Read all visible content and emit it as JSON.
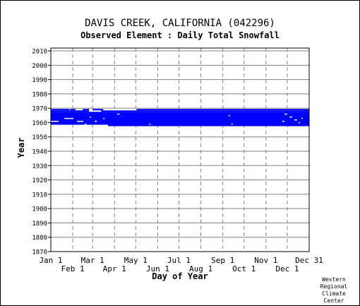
{
  "title": "DAVIS CREEK, CALIFORNIA   (042296)",
  "subtitle": "Observed Element : Daily Total Snowfall",
  "credit": [
    "Western",
    "Regional",
    "Climate",
    "Center"
  ],
  "colors": {
    "data": "#0000ff",
    "grid": "#808080",
    "axis": "#000000",
    "background": "#ffffff"
  },
  "chart_data": {
    "type": "heatmap",
    "xlabel": "Day of Year",
    "ylabel": "Year",
    "xlim": [
      1,
      366
    ],
    "ylim": [
      1870,
      2012
    ],
    "x_ticks_top_row": [
      {
        "label": "Jan 1",
        "day": 1
      },
      {
        "label": "Mar 1",
        "day": 60
      },
      {
        "label": "May 1",
        "day": 121
      },
      {
        "label": "Jul 1",
        "day": 182
      },
      {
        "label": "Sep 1",
        "day": 244
      },
      {
        "label": "Nov 1",
        "day": 305
      },
      {
        "label": "Dec 31",
        "day": 366
      }
    ],
    "x_ticks_bottom_row": [
      {
        "label": "Feb 1",
        "day": 32
      },
      {
        "label": "Apr 1",
        "day": 91
      },
      {
        "label": "Jun 1",
        "day": 152
      },
      {
        "label": "Aug 1",
        "day": 213
      },
      {
        "label": "Oct 1",
        "day": 274
      },
      {
        "label": "Dec 1",
        "day": 335
      }
    ],
    "y_ticks": [
      1870,
      1880,
      1890,
      1900,
      1910,
      1920,
      1930,
      1940,
      1950,
      1960,
      1970,
      1980,
      1990,
      2000,
      2010
    ],
    "grid": true,
    "observed_period": {
      "start_year": 1958,
      "end_year": 1969
    },
    "observed_blocks": [
      {
        "start_day": 1,
        "end_day": 366,
        "start_year": 1958.5,
        "end_year": 1967.5
      },
      {
        "start_day": 82,
        "end_day": 366,
        "start_year": 1957.5,
        "end_year": 1958.5
      },
      {
        "start_day": 1,
        "end_day": 55,
        "start_year": 1967.5,
        "end_year": 1968.5
      },
      {
        "start_day": 72,
        "end_day": 366,
        "start_year": 1967.5,
        "end_year": 1968.5
      },
      {
        "start_day": 1,
        "end_day": 27,
        "start_year": 1968.5,
        "end_year": 1969.5
      },
      {
        "start_day": 28,
        "end_day": 36,
        "start_year": 1968.5,
        "end_year": 1969.5
      },
      {
        "start_day": 46,
        "end_day": 55,
        "start_year": 1968.5,
        "end_year": 1969.5
      },
      {
        "start_day": 60,
        "end_day": 75,
        "start_year": 1968.5,
        "end_year": 1969.5
      },
      {
        "start_day": 122,
        "end_day": 366,
        "start_year": 1968.5,
        "end_year": 1969.5
      }
    ],
    "missing_gaps": [
      {
        "start_day": 1,
        "end_day": 12,
        "year": 1961
      },
      {
        "start_day": 20,
        "end_day": 33,
        "year": 1963
      },
      {
        "start_day": 38,
        "end_day": 47,
        "year": 1961
      },
      {
        "start_day": 49,
        "end_day": 51,
        "year": 1959
      },
      {
        "start_day": 56,
        "end_day": 58,
        "year": 1964
      },
      {
        "start_day": 63,
        "end_day": 66,
        "year": 1961
      },
      {
        "start_day": 75,
        "end_day": 77,
        "year": 1963
      },
      {
        "start_day": 95,
        "end_day": 98,
        "year": 1966
      },
      {
        "start_day": 140,
        "end_day": 142,
        "year": 1959
      },
      {
        "start_day": 252,
        "end_day": 254,
        "year": 1965
      },
      {
        "start_day": 256,
        "end_day": 258,
        "year": 1959
      },
      {
        "start_day": 328,
        "end_day": 331,
        "year": 1961
      },
      {
        "start_day": 331,
        "end_day": 335,
        "year": 1966
      },
      {
        "start_day": 338,
        "end_day": 342,
        "year": 1964
      },
      {
        "start_day": 345,
        "end_day": 349,
        "year": 1962
      },
      {
        "start_day": 351,
        "end_day": 353,
        "year": 1960
      },
      {
        "start_day": 355,
        "end_day": 357,
        "year": 1963
      }
    ]
  }
}
